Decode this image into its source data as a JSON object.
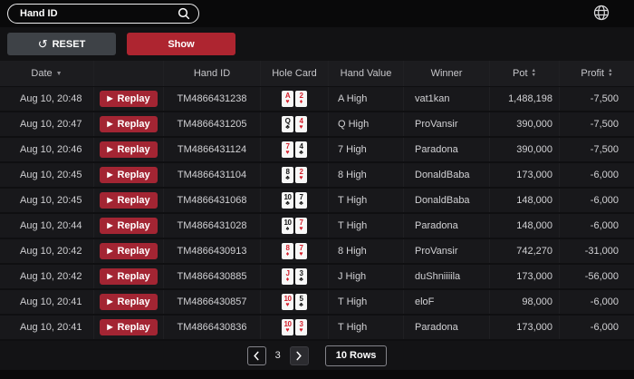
{
  "topbar": {
    "search_placeholder": "Hand ID"
  },
  "toolbar": {
    "reset_label": "RESET",
    "show_label": "Show"
  },
  "table": {
    "replay_label": "Replay",
    "headers": {
      "date": "Date",
      "hand_id": "Hand ID",
      "hole_card": "Hole Card",
      "hand_value": "Hand Value",
      "winner": "Winner",
      "pot": "Pot",
      "profit": "Profit"
    },
    "suit_glyphs": {
      "heart": "♥",
      "diamond": "♦",
      "club": "♣",
      "spade": "♠"
    },
    "red_suits": [
      "heart",
      "diamond"
    ],
    "rows": [
      {
        "date": "Aug 10, 20:48",
        "hand_id": "TM4866431238",
        "cards": [
          {
            "rank": "A",
            "suit": "heart"
          },
          {
            "rank": "2",
            "suit": "diamond"
          }
        ],
        "hand_value": "A High",
        "winner": "vat1kan",
        "pot": "1,488,198",
        "profit": "-7,500"
      },
      {
        "date": "Aug 10, 20:47",
        "hand_id": "TM4866431205",
        "cards": [
          {
            "rank": "Q",
            "suit": "club"
          },
          {
            "rank": "4",
            "suit": "heart"
          }
        ],
        "hand_value": "Q High",
        "winner": "ProVansir",
        "pot": "390,000",
        "profit": "-7,500"
      },
      {
        "date": "Aug 10, 20:46",
        "hand_id": "TM4866431124",
        "cards": [
          {
            "rank": "7",
            "suit": "heart"
          },
          {
            "rank": "4",
            "suit": "club"
          }
        ],
        "hand_value": "7 High",
        "winner": "Paradona",
        "pot": "390,000",
        "profit": "-7,500"
      },
      {
        "date": "Aug 10, 20:45",
        "hand_id": "TM4866431104",
        "cards": [
          {
            "rank": "8",
            "suit": "club"
          },
          {
            "rank": "2",
            "suit": "heart"
          }
        ],
        "hand_value": "8 High",
        "winner": "DonaldBaba",
        "pot": "173,000",
        "profit": "-6,000"
      },
      {
        "date": "Aug 10, 20:45",
        "hand_id": "TM4866431068",
        "cards": [
          {
            "rank": "10",
            "suit": "club"
          },
          {
            "rank": "7",
            "suit": "club"
          }
        ],
        "hand_value": "T High",
        "winner": "DonaldBaba",
        "pot": "148,000",
        "profit": "-6,000"
      },
      {
        "date": "Aug 10, 20:44",
        "hand_id": "TM4866431028",
        "cards": [
          {
            "rank": "10",
            "suit": "spade"
          },
          {
            "rank": "7",
            "suit": "heart"
          }
        ],
        "hand_value": "T High",
        "winner": "Paradona",
        "pot": "148,000",
        "profit": "-6,000"
      },
      {
        "date": "Aug 10, 20:42",
        "hand_id": "TM4866430913",
        "cards": [
          {
            "rank": "8",
            "suit": "diamond"
          },
          {
            "rank": "7",
            "suit": "heart"
          }
        ],
        "hand_value": "8 High",
        "winner": "ProVansir",
        "pot": "742,270",
        "profit": "-31,000"
      },
      {
        "date": "Aug 10, 20:42",
        "hand_id": "TM4866430885",
        "cards": [
          {
            "rank": "J",
            "suit": "diamond"
          },
          {
            "rank": "3",
            "suit": "club"
          }
        ],
        "hand_value": "J High",
        "winner": "duShniiiila",
        "pot": "173,000",
        "profit": "-56,000"
      },
      {
        "date": "Aug 10, 20:41",
        "hand_id": "TM4866430857",
        "cards": [
          {
            "rank": "10",
            "suit": "heart"
          },
          {
            "rank": "5",
            "suit": "club"
          }
        ],
        "hand_value": "T High",
        "winner": "eloF",
        "pot": "98,000",
        "profit": "-6,000"
      },
      {
        "date": "Aug 10, 20:41",
        "hand_id": "TM4866430836",
        "cards": [
          {
            "rank": "10",
            "suit": "heart"
          },
          {
            "rank": "3",
            "suit": "heart"
          }
        ],
        "hand_value": "T High",
        "winner": "Paradona",
        "pot": "173,000",
        "profit": "-6,000"
      }
    ]
  },
  "pagination": {
    "page": "3",
    "rows_label": "10 Rows"
  },
  "colors": {
    "accent_red": "#ae2530",
    "replay_red": "#a32533",
    "card_red": "#d4202c",
    "row_bg": "#18181b",
    "header_bg": "#1c1c1f"
  }
}
